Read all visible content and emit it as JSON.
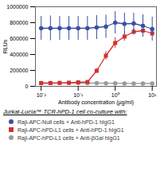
{
  "chart_data": {
    "type": "line",
    "title": "Jurkat-Lucia™ TCR-hPD-1 cell co-culture with:",
    "xlabel": "Antibody concentration (μg/ml)",
    "ylabel": "RLUs",
    "x": [
      0.01,
      0.0178,
      0.0316,
      0.0562,
      0.1,
      0.178,
      0.316,
      0.562,
      1.0,
      1.78,
      3.16,
      5.62,
      10.0
    ],
    "series": [
      {
        "name": "Raji-APC-Null cells + Anti-hPD-1 hIgG1",
        "color": "#3a4fa0",
        "marker": "circle",
        "values": [
          730000,
          730000,
          730000,
          730000,
          730000,
          730000,
          740000,
          750000,
          800000,
          785000,
          790000,
          760000,
          720000
        ],
        "errors": [
          150000,
          155000,
          150000,
          150000,
          150000,
          150000,
          150000,
          145000,
          140000,
          135000,
          130000,
          140000,
          150000
        ]
      },
      {
        "name": "Raji-APC-hPD-L1 cells + Anti-hPD-1 hIgG1",
        "color": "#d43030",
        "marker": "square",
        "values": [
          40000,
          40000,
          42000,
          45000,
          50000,
          55000,
          195000,
          385000,
          545000,
          625000,
          685000,
          700000,
          665000
        ],
        "errors": [
          4000,
          4000,
          5000,
          6000,
          7000,
          8000,
          28000,
          55000,
          68000,
          58000,
          38000,
          28000,
          28000
        ]
      },
      {
        "name": "Raji-APC-hPD-L1 cells + Anti-βGal hIgG1",
        "color": "#999999",
        "marker": "circle",
        "values": [
          42000,
          42000,
          42000,
          42000,
          42000,
          40000,
          40000,
          38000,
          38000,
          36000,
          36000,
          36000,
          35000
        ],
        "errors": [
          4000,
          4000,
          4000,
          4000,
          4000,
          4000,
          4000,
          4000,
          4000,
          4000,
          4000,
          4000,
          4000
        ]
      }
    ],
    "xlim": [
      0.007,
      13
    ],
    "ylim": [
      0,
      1000000
    ],
    "xticks": [
      {
        "value": 0.01,
        "label": "10⁻²"
      },
      {
        "value": 0.1,
        "label": "10⁻¹"
      },
      {
        "value": 1.0,
        "label": "10⁰"
      },
      {
        "value": 10.0,
        "label": "10¹"
      }
    ],
    "yticks": [
      0,
      200000,
      400000,
      600000,
      800000,
      1000000
    ],
    "log": "x",
    "grid": false,
    "legend": "bottom"
  }
}
